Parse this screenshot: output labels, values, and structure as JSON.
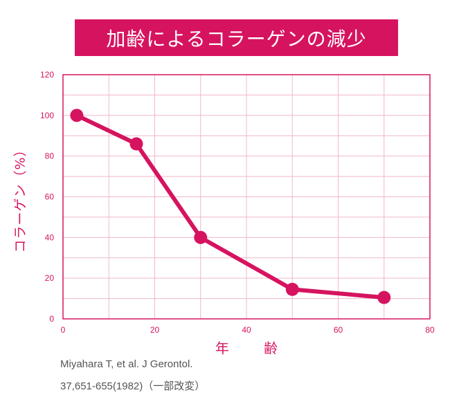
{
  "colors": {
    "accent": "#d6135f",
    "grid": "#f0b8c8",
    "citation_text": "#555555"
  },
  "chart_data": {
    "type": "line",
    "title": "加齢によるコラーゲンの減少",
    "xlabel": "年 齢",
    "ylabel": "コラーゲン（%）",
    "x": [
      3,
      16,
      30,
      50,
      70
    ],
    "series": [
      {
        "values": [
          100,
          86,
          40,
          14.5,
          10.5
        ]
      }
    ],
    "xlim": [
      0,
      80
    ],
    "ylim": [
      0,
      120
    ],
    "xticks": [
      0,
      20,
      40,
      60,
      80
    ],
    "yticks": [
      0,
      20,
      40,
      60,
      80,
      100,
      120
    ],
    "grid": true,
    "legend": "none",
    "x_tick_labels": [
      "0",
      "20",
      "40",
      "60",
      "80"
    ],
    "y_tick_labels": [
      "0",
      "20",
      "40",
      "60",
      "80",
      "100",
      "120"
    ]
  },
  "citation": {
    "line1": "Miyahara T, et al. J Gerontol.",
    "line2": "37,651-655(1982)（一部改変）"
  }
}
